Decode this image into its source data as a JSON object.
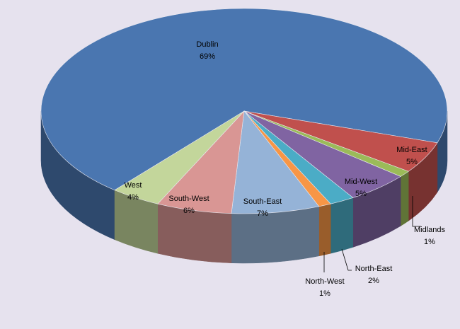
{
  "chart_data": {
    "type": "pie3d",
    "categories": [
      "Dublin",
      "Mid-East",
      "Midlands",
      "Mid-West",
      "North-East",
      "North-West",
      "South-East",
      "South-West",
      "West"
    ],
    "values": [
      69,
      5,
      1,
      5,
      2,
      1,
      7,
      6,
      4
    ],
    "value_labels": [
      "69%",
      "5%",
      "1%",
      "5%",
      "2%",
      "1%",
      "7%",
      "6%",
      "4%"
    ],
    "colors": [
      "#4a76b0",
      "#c0504d",
      "#9bbb59",
      "#8064a2",
      "#4bacc6",
      "#f79646",
      "#95b3d7",
      "#d99694",
      "#c3d69b"
    ]
  }
}
